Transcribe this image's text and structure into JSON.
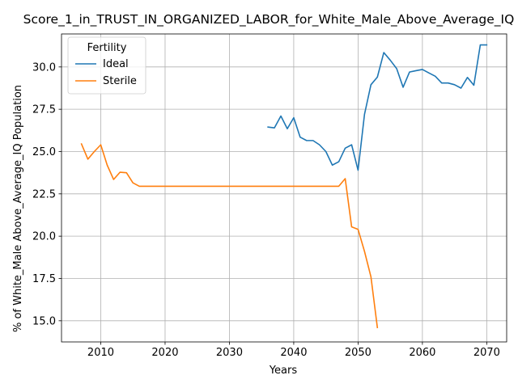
{
  "chart_data": {
    "type": "line",
    "title": "Score_1_in_TRUST_IN_ORGANIZED_LABOR_for_White_Male_Above_Average_IQ",
    "xlabel": "Years",
    "ylabel": "% of White_Male Above_Average_IQ Population",
    "xlim": [
      2003.9,
      2073.1
    ],
    "ylim": [
      13.75,
      31.95
    ],
    "xticks": [
      2010,
      2020,
      2030,
      2040,
      2050,
      2060,
      2070
    ],
    "yticks": [
      15.0,
      17.5,
      20.0,
      22.5,
      25.0,
      27.5,
      30.0
    ],
    "grid": true,
    "legend": {
      "title": "Fertility",
      "placement": "upper left"
    },
    "series": [
      {
        "name": "Ideal",
        "color": "#1f77b4",
        "x": [
          2036,
          2037,
          2038,
          2039,
          2040,
          2041,
          2042,
          2043,
          2044,
          2045,
          2046,
          2047,
          2048,
          2049,
          2050,
          2051,
          2052,
          2053,
          2054,
          2055,
          2056,
          2057,
          2058,
          2059,
          2060,
          2061,
          2062,
          2063,
          2064,
          2065,
          2066,
          2067,
          2068,
          2069,
          2070
        ],
        "y": [
          26.45,
          26.4,
          27.1,
          26.35,
          27.0,
          25.85,
          25.65,
          25.65,
          25.4,
          25.0,
          24.2,
          24.4,
          25.2,
          25.4,
          23.9,
          27.2,
          28.95,
          29.4,
          30.85,
          30.4,
          29.9,
          28.8,
          29.7,
          29.78,
          29.85,
          29.65,
          29.45,
          29.05,
          29.05,
          28.95,
          28.75,
          29.38,
          28.92,
          31.3,
          31.3
        ]
      },
      {
        "name": "Sterile",
        "color": "#ff7f0e",
        "x": [
          2007,
          2008,
          2009,
          2010,
          2011,
          2012,
          2013,
          2014,
          2015,
          2016,
          2017,
          2018,
          2019,
          2020,
          2021,
          2022,
          2023,
          2024,
          2025,
          2026,
          2027,
          2028,
          2029,
          2030,
          2031,
          2032,
          2033,
          2034,
          2035,
          2036,
          2037,
          2038,
          2039,
          2040,
          2041,
          2042,
          2043,
          2044,
          2045,
          2046,
          2047,
          2048,
          2049,
          2050,
          2051,
          2052,
          2053
        ],
        "y": [
          25.45,
          24.55,
          25.0,
          25.4,
          24.2,
          23.35,
          23.78,
          23.75,
          23.15,
          22.95,
          22.95,
          22.95,
          22.95,
          22.95,
          22.95,
          22.95,
          22.95,
          22.95,
          22.95,
          22.95,
          22.95,
          22.95,
          22.95,
          22.95,
          22.95,
          22.95,
          22.95,
          22.95,
          22.95,
          22.95,
          22.95,
          22.95,
          22.95,
          22.95,
          22.95,
          22.95,
          22.95,
          22.95,
          22.95,
          22.95,
          22.95,
          23.4,
          20.55,
          20.4,
          19.1,
          17.6,
          14.6
        ]
      }
    ]
  }
}
